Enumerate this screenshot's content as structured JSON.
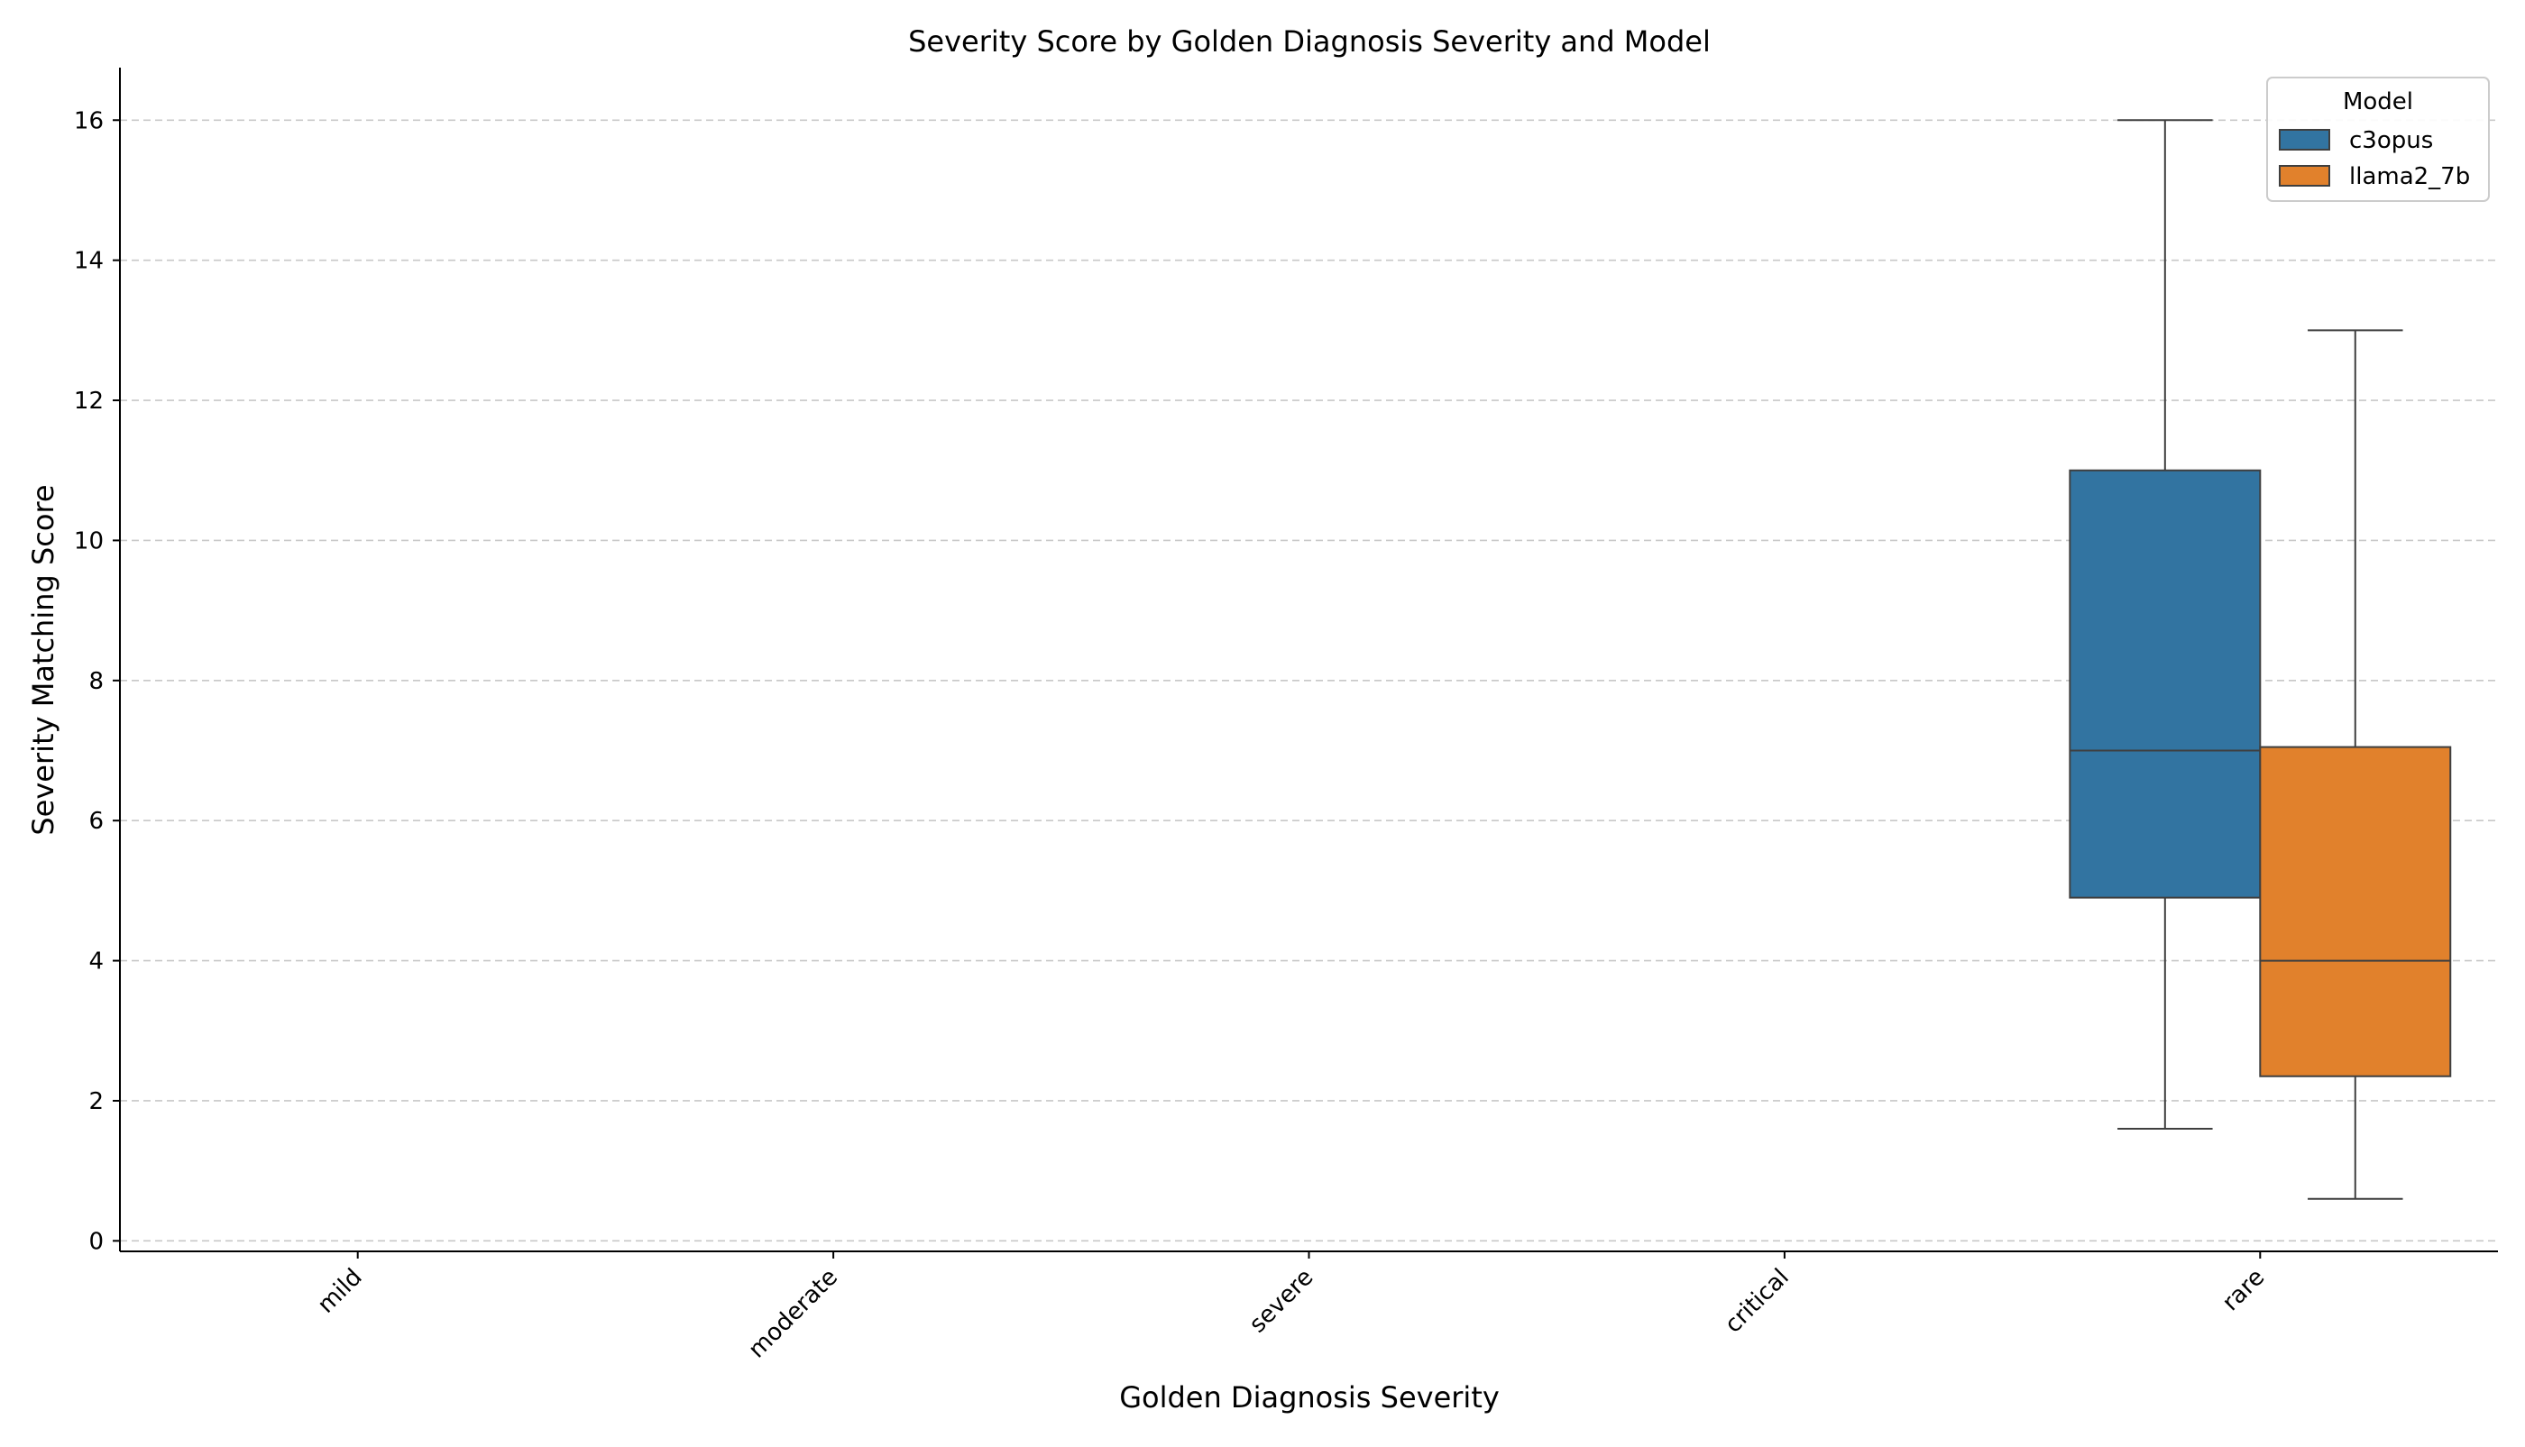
{
  "chart_data": {
    "type": "box",
    "title": "Severity Score by Golden Diagnosis Severity and Model",
    "xlabel": "Golden Diagnosis Severity",
    "ylabel": "Severity Matching Score",
    "categories": [
      "mild",
      "moderate",
      "severe",
      "critical",
      "rare"
    ],
    "ylim": [
      -0.15,
      16.75
    ],
    "yticks": [
      0,
      2,
      4,
      6,
      8,
      10,
      12,
      14,
      16
    ],
    "grid": "y-dashed",
    "legend": {
      "title": "Model",
      "placement": "top-right"
    },
    "series": [
      {
        "name": "c3opus",
        "color": "#3274a1",
        "boxes": [
          {
            "category": "rare",
            "whisker_low": 1.6,
            "q1": 4.9,
            "median": 7.0,
            "q3": 11.0,
            "whisker_high": 16.0
          }
        ]
      },
      {
        "name": "llama2_7b",
        "color": "#e1812c",
        "boxes": [
          {
            "category": "rare",
            "whisker_low": 0.6,
            "q1": 2.35,
            "median": 4.0,
            "q3": 7.05,
            "whisker_high": 13.0
          }
        ]
      }
    ]
  }
}
